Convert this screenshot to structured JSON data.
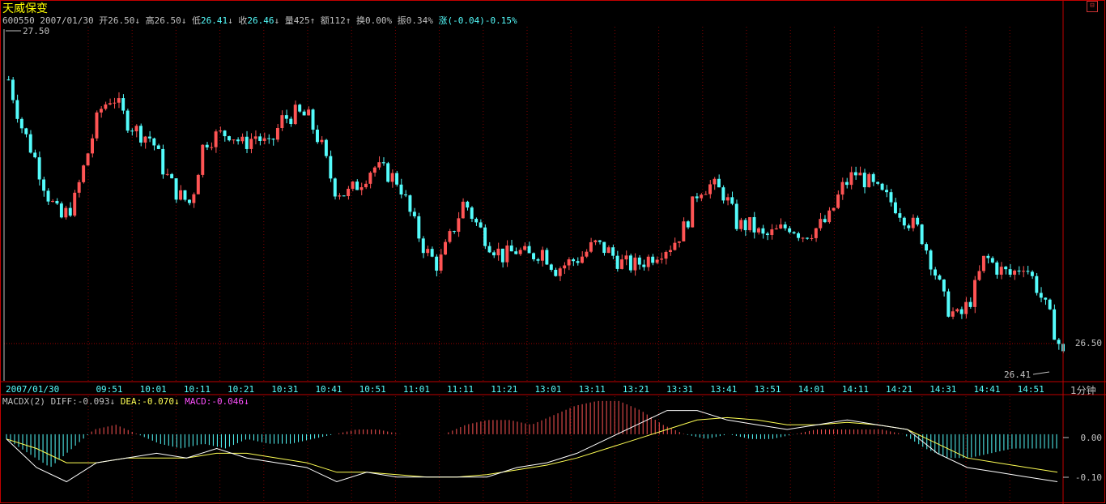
{
  "stock": {
    "name": "天威保变",
    "code": "600550",
    "date": "2007/01/30",
    "open_label": "开",
    "open": "26.50",
    "high_label": "高",
    "high": "26.50",
    "low_label": "低",
    "low": "26.41",
    "close_label": "收",
    "close": "26.46",
    "volume_label": "量",
    "volume": "425",
    "amount_label": "额",
    "amount": "112",
    "turnover_label": "换",
    "turnover": "0.00%",
    "amplitude_label": "振",
    "amplitude": "0.34%",
    "change_label": "涨",
    "change": "(-0.04)-0.15%"
  },
  "period": "1分钟",
  "macd_legend": {
    "name": "MACDX(2)",
    "diff": "DIFF:-0.093",
    "dea": "DEA:-0.070",
    "macd": "MACD:-0.046"
  },
  "colors": {
    "up": "#ff5454",
    "down": "#54fcfc",
    "frame": "#c00000",
    "diff_line": "#ffffff",
    "dea_line": "#ffff54",
    "macd_text": "#ff50ff"
  },
  "chart_data": {
    "type": "candlestick",
    "x_start_label": "2007/01/30",
    "time_ticks": [
      "09:51",
      "10:01",
      "10:11",
      "10:21",
      "10:31",
      "10:41",
      "10:51",
      "11:01",
      "11:11",
      "11:21",
      "13:01",
      "13:11",
      "13:21",
      "13:31",
      "13:41",
      "13:51",
      "14:01",
      "14:11",
      "14:21",
      "14:31",
      "14:41",
      "14:51"
    ],
    "price_top_label": "27.50",
    "price_ref_label": "26.50",
    "price_low_label": "26.41",
    "macd_ticks": [
      "0.00",
      "-0.10"
    ],
    "price_range": [
      26.38,
      27.52
    ],
    "macd_range": [
      -0.14,
      0.08
    ],
    "price_path": [
      27.35,
      27.2,
      27.1,
      26.98,
      26.9,
      26.95,
      27.1,
      27.25,
      27.3,
      27.22,
      27.18,
      27.16,
      27.05,
      26.98,
      26.95,
      27.15,
      27.17,
      27.18,
      27.14,
      27.17,
      27.13,
      27.22,
      27.24,
      27.23,
      27.14,
      27.0,
      26.98,
      27.02,
      27.07,
      27.05,
      27.02,
      26.9,
      26.8,
      26.75,
      26.85,
      26.96,
      26.88,
      26.82,
      26.78,
      26.8,
      26.78,
      26.8,
      26.74,
      26.76,
      26.78,
      26.82,
      26.8,
      26.76,
      26.75,
      26.77,
      26.8,
      26.82,
      26.88,
      27.0,
      27.01,
      26.98,
      26.88,
      26.88,
      26.84,
      26.86,
      26.88,
      26.85,
      26.87,
      26.9,
      27.0,
      27.05,
      27.02,
      26.98,
      26.95,
      26.9,
      26.86,
      26.75,
      26.62,
      26.58,
      26.65,
      26.78,
      26.74,
      26.72,
      26.76,
      26.68,
      26.58,
      26.46
    ],
    "macd_hist": [
      -0.01,
      -0.04,
      -0.07,
      -0.03,
      0.01,
      0.02,
      0.0,
      -0.02,
      -0.03,
      -0.02,
      -0.03,
      -0.01,
      -0.02,
      -0.02,
      -0.01,
      0.0,
      0.01,
      0.01,
      0.0,
      0.0,
      0.0,
      0.02,
      0.03,
      0.03,
      0.02,
      0.04,
      0.06,
      0.07,
      0.07,
      0.05,
      0.02,
      0.0,
      -0.01,
      0.0,
      -0.01,
      -0.01,
      0.0,
      0.01,
      0.01,
      0.01,
      0.01,
      0.0,
      -0.03,
      -0.05,
      -0.05,
      -0.04,
      -0.03,
      -0.03,
      -0.03
    ],
    "diff_series": [
      -0.01,
      -0.07,
      -0.1,
      -0.06,
      -0.05,
      -0.04,
      -0.05,
      -0.03,
      -0.05,
      -0.06,
      -0.07,
      -0.1,
      -0.08,
      -0.09,
      -0.09,
      -0.09,
      -0.09,
      -0.07,
      -0.06,
      -0.04,
      -0.01,
      0.02,
      0.05,
      0.05,
      0.03,
      0.02,
      0.01,
      0.02,
      0.03,
      0.02,
      0.01,
      -0.04,
      -0.07,
      -0.08,
      -0.09,
      -0.1
    ],
    "dea_series": [
      -0.01,
      -0.03,
      -0.06,
      -0.06,
      -0.05,
      -0.05,
      -0.05,
      -0.04,
      -0.04,
      -0.05,
      -0.06,
      -0.08,
      -0.08,
      -0.085,
      -0.09,
      -0.09,
      -0.085,
      -0.075,
      -0.065,
      -0.05,
      -0.03,
      -0.01,
      0.01,
      0.03,
      0.035,
      0.03,
      0.02,
      0.02,
      0.025,
      0.02,
      0.01,
      -0.02,
      -0.05,
      -0.06,
      -0.07,
      -0.08
    ]
  }
}
